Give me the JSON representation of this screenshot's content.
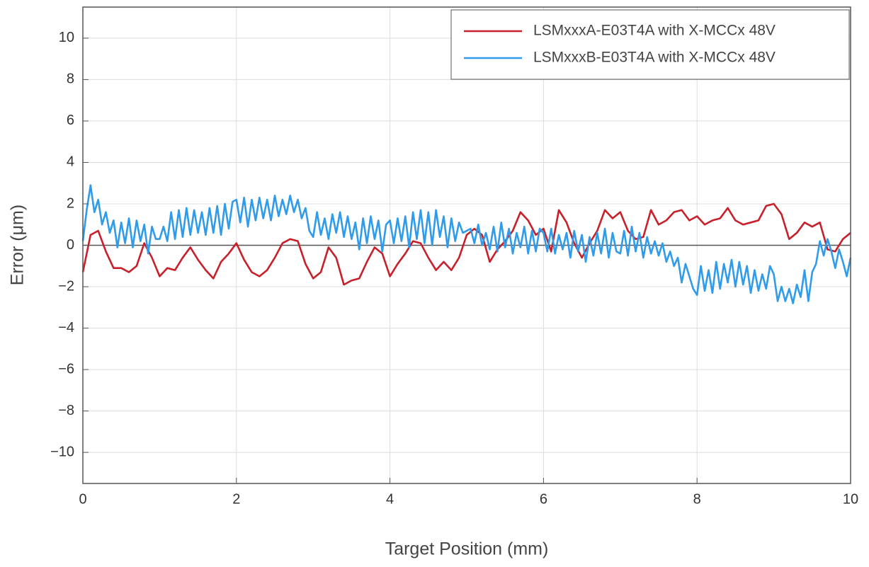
{
  "chart_data": {
    "type": "line",
    "xlabel": "Target Position (mm)",
    "ylabel": "Error (μm)",
    "xlim": [
      0,
      10
    ],
    "xticks": [
      0,
      2,
      4,
      6,
      8,
      10
    ],
    "ylim": [
      -11.5,
      11.5
    ],
    "yticks": [
      {
        "value": -10,
        "label": "−10"
      },
      {
        "value": -8,
        "label": "−8"
      },
      {
        "value": -6,
        "label": "−6"
      },
      {
        "value": -4,
        "label": "−4"
      },
      {
        "value": -2,
        "label": "−2"
      },
      0,
      2,
      4,
      6,
      8,
      10
    ],
    "grid": true,
    "zero_line": true,
    "legend": "upper right",
    "series": [
      {
        "name": "LSMxxxA-E03T4A with X-MCCx 48V",
        "color": "#c8202a",
        "x": [
          0,
          0.1,
          0.2,
          0.3,
          0.4,
          0.5,
          0.6,
          0.7,
          0.8,
          0.9,
          1,
          1.1,
          1.2,
          1.3,
          1.4,
          1.5,
          1.6,
          1.7,
          1.8,
          1.9,
          2,
          2.1,
          2.2,
          2.3,
          2.4,
          2.5,
          2.6,
          2.7,
          2.8,
          2.9,
          3,
          3.1,
          3.2,
          3.3,
          3.4,
          3.5,
          3.6,
          3.7,
          3.8,
          3.9,
          4,
          4.1,
          4.2,
          4.3,
          4.4,
          4.5,
          4.6,
          4.7,
          4.8,
          4.9,
          5,
          5.1,
          5.2,
          5.3,
          5.4,
          5.5,
          5.6,
          5.7,
          5.8,
          5.9,
          6,
          6.1,
          6.2,
          6.3,
          6.4,
          6.5,
          6.6,
          6.7,
          6.8,
          6.9,
          7,
          7.1,
          7.2,
          7.3,
          7.4,
          7.5,
          7.6,
          7.7,
          7.8,
          7.9,
          8,
          8.1,
          8.2,
          8.3,
          8.4,
          8.5,
          8.6,
          8.7,
          8.8,
          8.9,
          9,
          9.1,
          9.2,
          9.3,
          9.4,
          9.5,
          9.6,
          9.7,
          9.8,
          9.9,
          10
        ],
        "values": [
          -1.3,
          0.5,
          0.7,
          -0.3,
          -1.1,
          -1.1,
          -1.3,
          -1.0,
          0.1,
          -0.6,
          -1.5,
          -1.1,
          -1.2,
          -0.6,
          -0.1,
          -0.7,
          -1.2,
          -1.6,
          -0.8,
          -0.4,
          0.1,
          -0.7,
          -1.3,
          -1.5,
          -1.2,
          -0.6,
          0.1,
          0.3,
          0.2,
          -0.9,
          -1.6,
          -1.3,
          -0.1,
          -0.6,
          -1.9,
          -1.7,
          -1.6,
          -0.8,
          -0.1,
          -0.4,
          -1.5,
          -0.9,
          -0.4,
          0.2,
          0.1,
          -0.6,
          -1.2,
          -0.8,
          -1.2,
          -0.6,
          0.5,
          0.8,
          0.5,
          -0.8,
          -0.2,
          0.2,
          0.7,
          1.6,
          1.2,
          0.5,
          0.8,
          -0.3,
          1.7,
          1.1,
          0.1,
          -0.6,
          0.1,
          0.7,
          1.7,
          1.3,
          1.6,
          0.7,
          0.3,
          0.4,
          1.7,
          1.0,
          1.2,
          1.6,
          1.7,
          1.2,
          1.4,
          1.0,
          1.2,
          1.3,
          1.8,
          1.2,
          1.0,
          1.1,
          1.2,
          1.9,
          2.0,
          1.5,
          0.3,
          0.6,
          1.1,
          0.9,
          1.1,
          -0.2,
          -0.3,
          0.3,
          0.6
        ]
      },
      {
        "name": "LSMxxxB-E03T4A with X-MCCx 48V",
        "color": "#2f9bea",
        "x": [
          0,
          0.05,
          0.1,
          0.15,
          0.2,
          0.25,
          0.3,
          0.35,
          0.4,
          0.45,
          0.5,
          0.55,
          0.6,
          0.65,
          0.7,
          0.75,
          0.8,
          0.85,
          0.9,
          0.95,
          1,
          1.05,
          1.1,
          1.15,
          1.2,
          1.25,
          1.3,
          1.35,
          1.4,
          1.45,
          1.5,
          1.55,
          1.6,
          1.65,
          1.7,
          1.75,
          1.8,
          1.85,
          1.9,
          1.95,
          2,
          2.05,
          2.1,
          2.15,
          2.2,
          2.25,
          2.3,
          2.35,
          2.4,
          2.45,
          2.5,
          2.55,
          2.6,
          2.65,
          2.7,
          2.75,
          2.8,
          2.85,
          2.9,
          2.95,
          3,
          3.05,
          3.1,
          3.15,
          3.2,
          3.25,
          3.3,
          3.35,
          3.4,
          3.45,
          3.5,
          3.55,
          3.6,
          3.65,
          3.7,
          3.75,
          3.8,
          3.85,
          3.9,
          3.95,
          4,
          4.05,
          4.1,
          4.15,
          4.2,
          4.25,
          4.3,
          4.35,
          4.4,
          4.45,
          4.5,
          4.55,
          4.6,
          4.65,
          4.7,
          4.75,
          4.8,
          4.85,
          4.9,
          4.95,
          5,
          5.05,
          5.1,
          5.15,
          5.2,
          5.25,
          5.3,
          5.35,
          5.4,
          5.45,
          5.5,
          5.55,
          5.6,
          5.65,
          5.7,
          5.75,
          5.8,
          5.85,
          5.9,
          5.95,
          6,
          6.05,
          6.1,
          6.15,
          6.2,
          6.25,
          6.3,
          6.35,
          6.4,
          6.45,
          6.5,
          6.55,
          6.6,
          6.65,
          6.7,
          6.75,
          6.8,
          6.85,
          6.9,
          6.95,
          7,
          7.05,
          7.1,
          7.15,
          7.2,
          7.25,
          7.3,
          7.35,
          7.4,
          7.45,
          7.5,
          7.55,
          7.6,
          7.65,
          7.7,
          7.75,
          7.8,
          7.85,
          7.9,
          7.95,
          8,
          8.05,
          8.1,
          8.15,
          8.2,
          8.25,
          8.3,
          8.35,
          8.4,
          8.45,
          8.5,
          8.55,
          8.6,
          8.65,
          8.7,
          8.75,
          8.8,
          8.85,
          8.9,
          8.95,
          9,
          9.05,
          9.1,
          9.15,
          9.2,
          9.25,
          9.3,
          9.35,
          9.4,
          9.45,
          9.5,
          9.55,
          9.6,
          9.65,
          9.7,
          9.75,
          9.8,
          9.85,
          9.9,
          9.95,
          10
        ],
        "values": [
          0.2,
          1.7,
          2.9,
          1.6,
          2.2,
          1.0,
          1.6,
          0.6,
          1.2,
          -0.1,
          1.1,
          0.1,
          1.3,
          -0.1,
          1.2,
          0.2,
          1.0,
          -0.4,
          0.9,
          0.3,
          0.3,
          0.9,
          0.2,
          1.6,
          0.3,
          1.7,
          0.4,
          1.8,
          0.5,
          1.7,
          0.6,
          1.6,
          0.5,
          1.8,
          0.6,
          1.9,
          0.5,
          2.0,
          0.8,
          2.1,
          2.2,
          1.1,
          2.3,
          0.9,
          2.2,
          1.2,
          2.3,
          1.3,
          2.2,
          1.2,
          2.4,
          1.4,
          2.2,
          1.5,
          2.4,
          1.6,
          2.2,
          1.3,
          1.8,
          0.7,
          0.4,
          1.6,
          0.5,
          1.3,
          0.3,
          1.5,
          0.6,
          1.6,
          0.4,
          1.4,
          0.3,
          1.1,
          -0.2,
          1.3,
          0.1,
          1.4,
          0.3,
          1.2,
          -0.3,
          1.0,
          1.2,
          0.1,
          1.3,
          0.2,
          1.4,
          -0.1,
          1.6,
          0.3,
          1.7,
          0.1,
          1.6,
          0.0,
          1.7,
          0.4,
          1.4,
          -0.1,
          1.3,
          0.2,
          1.1,
          0.6,
          0.7,
          0.8,
          0.1,
          1.0,
          0.0,
          0.6,
          -0.2,
          0.9,
          -0.3,
          1.1,
          -0.1,
          0.8,
          -0.4,
          0.6,
          -0.1,
          0.9,
          -0.4,
          0.7,
          -0.3,
          0.8,
          0.6,
          -0.3,
          0.8,
          -0.4,
          0.5,
          -0.2,
          0.6,
          -0.6,
          0.7,
          -0.3,
          0.5,
          -0.8,
          0.4,
          -0.5,
          0.6,
          -0.4,
          0.8,
          -0.6,
          0.6,
          -0.3,
          -0.4,
          0.7,
          -0.5,
          0.9,
          -0.3,
          0.6,
          -0.6,
          0.4,
          -0.4,
          0.2,
          -0.5,
          0.1,
          -0.8,
          -0.3,
          -1.0,
          -0.6,
          -1.8,
          -0.9,
          -1.5,
          -2.1,
          -2.4,
          -1.0,
          -2.2,
          -1.2,
          -2.3,
          -0.8,
          -2.1,
          -0.9,
          -1.8,
          -0.7,
          -2.0,
          -0.8,
          -1.9,
          -1.0,
          -2.3,
          -1.2,
          -2.2,
          -1.4,
          -2.1,
          -1.0,
          -1.4,
          -2.7,
          -2.0,
          -2.7,
          -2.1,
          -2.8,
          -1.9,
          -2.5,
          -1.2,
          -2.7,
          -1.3,
          -0.9,
          0.2,
          -0.5,
          0.3,
          -0.3,
          -1.1,
          -0.2,
          -0.8,
          -1.5,
          -0.6
        ]
      }
    ]
  }
}
